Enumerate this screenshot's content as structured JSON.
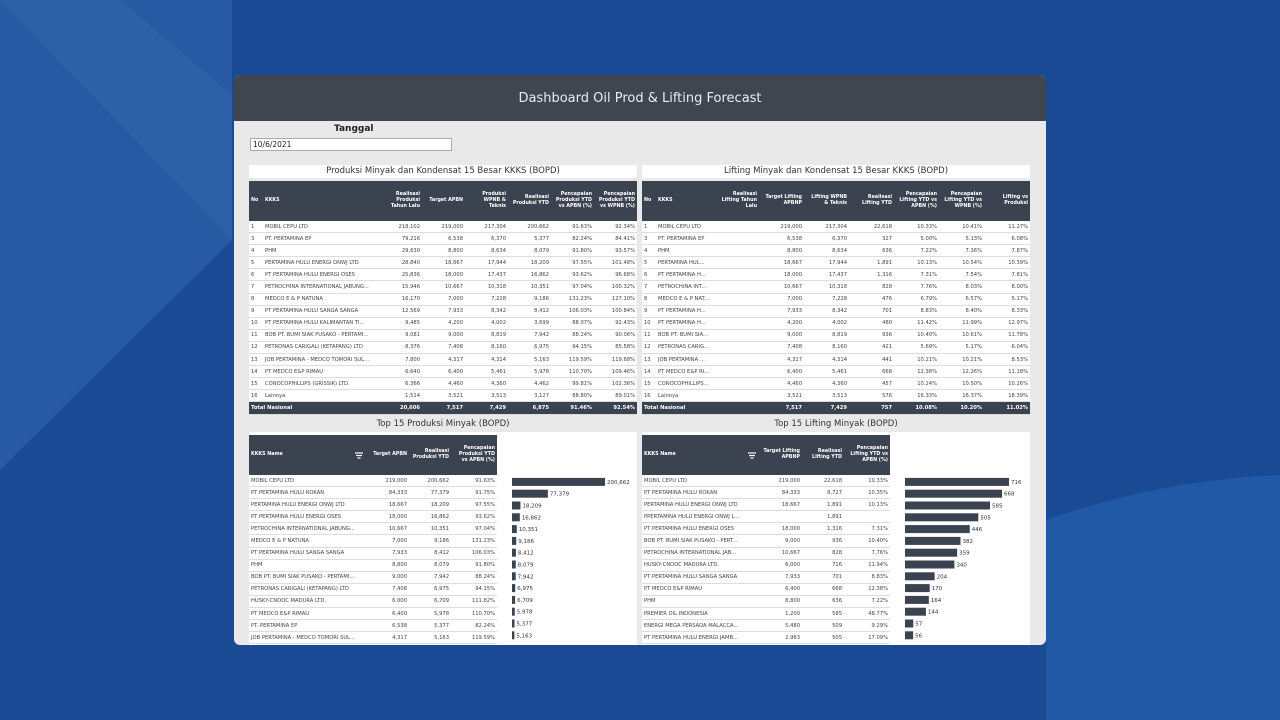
{
  "header": {
    "title": "Dashboard Oil Prod & Lifting Forecast"
  },
  "filter": {
    "label": "Tanggal",
    "value": "10/6/2021"
  },
  "tables": [
    {
      "title": "Produksi Minyak dan Kondensat 15 Besar KKKS (BOPD)",
      "columns": [
        "No",
        "KKKS",
        "Realisasi Produksi Tahun Lalu",
        "Target APBN",
        "Produksi WPNB & Teknis",
        "Realisasi Produksi YTD",
        "Pencapaian Produksi YTD vs APBN (%)",
        "Pencapaian Produksi YTD vs WPNB (%)"
      ],
      "rows": [
        [
          "1",
          "MOBIL CEPU LTD",
          "218,102",
          "219,000",
          "217,304",
          "200,662",
          "91.63%",
          "92.34%"
        ],
        [
          "3",
          "PT. PERTAMINA EP",
          "79,216",
          "6,538",
          "6,370",
          "5,377",
          "82.24%",
          "84.41%"
        ],
        [
          "4",
          "PHM",
          "29,630",
          "8,800",
          "8,634",
          "8,079",
          "91.80%",
          "93.57%"
        ],
        [
          "5",
          "PERTAMINA HULU ENERGI ONWJ LTD",
          "28,840",
          "18,667",
          "17,944",
          "18,209",
          "97.55%",
          "101.48%"
        ],
        [
          "6",
          "PT PERTAMINA HULU ENERGI OSES",
          "25,836",
          "18,000",
          "17,437",
          "16,862",
          "93.62%",
          "96.68%"
        ],
        [
          "7",
          "PETROCHINA INTERNATIONAL JABUNG...",
          "15,946",
          "10,667",
          "10,318",
          "10,351",
          "97.04%",
          "100.32%"
        ],
        [
          "8",
          "MEDCO E & P NATUNA",
          "16,170",
          "7,000",
          "7,228",
          "9,186",
          "131.23%",
          "127.10%"
        ],
        [
          "9",
          "PT PERTAMINA HULU SANGA SANGA",
          "12,569",
          "7,933",
          "8,342",
          "8,412",
          "106.03%",
          "100.84%"
        ],
        [
          "10",
          "PT PERTAMINA HULU KALIMANTAN TI...",
          "9,485",
          "4,200",
          "4,002",
          "3,699",
          "88.07%",
          "92.43%"
        ],
        [
          "11",
          "BOB PT. BUMI SIAK PUSAKO - PERTAMI...",
          "9,081",
          "9,000",
          "8,819",
          "7,942",
          "88.24%",
          "90.06%"
        ],
        [
          "12",
          "PETRONAS CARIGALI (KETAPANG) LTD",
          "8,376",
          "7,408",
          "8,160",
          "6,975",
          "94.15%",
          "85.58%"
        ],
        [
          "13",
          "JOB PERTAMINA - MEDCO TOMORI SUL...",
          "7,800",
          "4,317",
          "4,314",
          "5,163",
          "119.59%",
          "119.68%"
        ],
        [
          "14",
          "PT MEDCO E&P RIMAU",
          "6,640",
          "6,400",
          "5,461",
          "5,978",
          "110.70%",
          "109.46%"
        ],
        [
          "15",
          "CONOCOPHILLIPS (GRISSIK) LTD.",
          "6,366",
          "4,460",
          "4,360",
          "4,462",
          "99.81%",
          "102.36%"
        ],
        [
          "16",
          "Lainnya",
          "1,514",
          "3,521",
          "3,513",
          "3,127",
          "88.80%",
          "89.01%"
        ]
      ],
      "total": [
        "Total Nasional",
        "20,606",
        "7,517",
        "7,429",
        "6,875",
        "91.46%",
        "92.54%"
      ]
    },
    {
      "title": "Lifting Minyak dan Kondensat 15 Besar KKKS (BOPD)",
      "columns": [
        "No",
        "KKKS",
        "Realisasi Lifting Tahun Lalu",
        "Target Lifting APBNP",
        "Lifting WPNB & Teknis",
        "Realisasi Lifting YTD",
        "Pencapaian Lifting YTD vs APBN (%)",
        "Pencapaian Lifting YTD vs WPNB (%)",
        "Lifting vs Produksi"
      ],
      "rows": [
        [
          "1",
          "MOBIL CEPU LTD",
          null,
          "219,000",
          "217,304",
          "22,618",
          "10.33%",
          "10.41%",
          "11.27%"
        ],
        [
          "3",
          "PT. PERTAMINA EP",
          null,
          "6,538",
          "6,370",
          "327",
          "5.00%",
          "5.13%",
          "6.08%"
        ],
        [
          "4",
          "PHM",
          null,
          "8,800",
          "8,634",
          "636",
          "7.22%",
          "7.36%",
          "7.87%"
        ],
        [
          "5",
          "PERTAMINA HUL...",
          null,
          "18,667",
          "17,944",
          "1,891",
          "10.13%",
          "10.54%",
          "10.39%"
        ],
        [
          "6",
          "PT PERTAMINA H...",
          null,
          "18,000",
          "17,437",
          "1,316",
          "7.31%",
          "7.54%",
          "7.81%"
        ],
        [
          "7",
          "PETROCHINA INT...",
          null,
          "10,667",
          "10,318",
          "828",
          "7.76%",
          "8.03%",
          "8.00%"
        ],
        [
          "8",
          "MEDCO E & P NAT...",
          null,
          "7,000",
          "7,228",
          "476",
          "6.79%",
          "6.57%",
          "5.17%"
        ],
        [
          "9",
          "PT PERTAMINA H...",
          null,
          "7,933",
          "8,342",
          "701",
          "8.83%",
          "8.40%",
          "8.33%"
        ],
        [
          "10",
          "PT PERTAMINA H...",
          null,
          "4,200",
          "4,002",
          "480",
          "11.42%",
          "11.99%",
          "12.97%"
        ],
        [
          "11",
          "BOB PT. BUMI SIA...",
          null,
          "9,000",
          "8,819",
          "936",
          "10.40%",
          "10.61%",
          "11.78%"
        ],
        [
          "12",
          "PETRONAS CARIG...",
          null,
          "7,408",
          "8,160",
          "421",
          "5.69%",
          "5.17%",
          "6.04%"
        ],
        [
          "13",
          "JOB PERTAMINA ...",
          null,
          "4,317",
          "4,314",
          "441",
          "10.21%",
          "10.21%",
          "8.53%"
        ],
        [
          "14",
          "PT MEDCO E&P RI...",
          null,
          "6,400",
          "5,461",
          "668",
          "12.38%",
          "12.26%",
          "11.18%"
        ],
        [
          "15",
          "CONOCOPHILLIPS...",
          null,
          "4,460",
          "4,360",
          "457",
          "10.24%",
          "10.50%",
          "10.26%"
        ],
        [
          "16",
          "Lainnya",
          null,
          "3,521",
          "3,513",
          "576",
          "16.33%",
          "16.37%",
          "18.39%"
        ]
      ],
      "total": [
        "Total Nasional",
        null,
        "7,517",
        "7,429",
        "757",
        "10.08%",
        "10.20%",
        "11.02%"
      ]
    }
  ],
  "top": [
    {
      "title": "Top 15 Produksi Minyak (BOPD)",
      "columns": [
        "KKKS Name",
        "Target APBN",
        "Realisasi Produksi YTD",
        "Pencapaian Produksi YTD vs APBN (%)"
      ],
      "rows": [
        [
          "MOBIL CEPU LTD",
          "219,000",
          "200,662",
          "91.63%"
        ],
        [
          "PT PERTAMINA HULU ROKAN",
          "84,333",
          "77,379",
          "91.75%"
        ],
        [
          "PERTAMINA HULU ENERGI ONWJ LTD",
          "18,667",
          "18,209",
          "97.55%"
        ],
        [
          "PT PERTAMINA HULU ENERGI OSES",
          "18,000",
          "16,862",
          "93.62%"
        ],
        [
          "PETROCHINA INTERNATIONAL JABUNG...",
          "10,667",
          "10,351",
          "97.04%"
        ],
        [
          "MEDCO E & P NATUNA",
          "7,000",
          "9,186",
          "131.23%"
        ],
        [
          "PT PERTAMINA HULU SANGA SANGA",
          "7,933",
          "8,412",
          "106.03%"
        ],
        [
          "PHM",
          "8,800",
          "8,079",
          "91.80%"
        ],
        [
          "BOB PT. BUMI SIAK PUSAKO - PERTAMI...",
          "9,000",
          "7,942",
          "88.24%"
        ],
        [
          "PETRONAS CARIGALI (KETAPANG) LTD",
          "7,408",
          "6,975",
          "94.15%"
        ],
        [
          "HUSKY-CNOOC MADURA LTD.",
          "6,000",
          "6,709",
          "111.82%"
        ],
        [
          "PT MEDCO E&P RIMAU",
          "6,400",
          "5,978",
          "110.70%"
        ],
        [
          "PT. PERTAMINA EP",
          "6,538",
          "5,377",
          "82.24%"
        ],
        [
          "JOB PERTAMINA - MEDCO TOMORI SUL...",
          "4,317",
          "5,163",
          "119.59%"
        ]
      ],
      "bars": {
        "values": [
          200662,
          77379,
          18209,
          16862,
          10351,
          9186,
          8412,
          8079,
          7942,
          6975,
          6709,
          5978,
          5377,
          5163
        ],
        "value_labels": [
          "200,662",
          "77,379",
          "18,209",
          "16,862",
          "10,351",
          "9,186",
          "8,412",
          "8,079",
          "7,942",
          "6,975",
          "6,709",
          "5,978",
          "5,377",
          "5,163"
        ]
      }
    },
    {
      "title": "Top 15 Lifting Minyak (BOPD)",
      "columns": [
        "KKKS Name",
        "Target Lifting APBNP",
        "Realisasi Lifting YTD",
        "Pencapaian Lifting YTD vs APBN (%)"
      ],
      "rows": [
        [
          "MOBIL CEPU LTD",
          "219,000",
          "22,618",
          "10.33%"
        ],
        [
          "PT PERTAMINA HULU ROKAN",
          "84,333",
          "8,727",
          "10.35%"
        ],
        [
          "PERTAMINA HULU ENERGI ONWJ LTD",
          "18,667",
          "1,891",
          "10.13%"
        ],
        [
          "PPERTAMINA HULU ENERGI ONWJ L...",
          null,
          "1,891",
          null
        ],
        [
          "PT PERTAMINA HULU ENERGI OSES",
          "18,000",
          "1,316",
          "7.31%"
        ],
        [
          "BOB PT. BUMI SIAK PUSAKO - PERT...",
          "9,000",
          "936",
          "10.40%"
        ],
        [
          "PETROCHINA INTERNATIONAL JAB...",
          "10,667",
          "828",
          "7.76%"
        ],
        [
          "HUSKY-CNOOC MADURA LTD.",
          "6,000",
          "716",
          "11.94%"
        ],
        [
          "PT PERTAMINA HULU SANGA SANGA",
          "7,933",
          "701",
          "8.83%"
        ],
        [
          "PT MEDCO E&P RIMAU",
          "6,400",
          "668",
          "12.38%"
        ],
        [
          "PHM",
          "8,800",
          "636",
          "7.22%"
        ],
        [
          "PREMIER OIL INDONESIA",
          "1,200",
          "585",
          "48.77%"
        ],
        [
          "ENERGI MEGA PERSADA MALACCA...",
          "5,480",
          "509",
          "9.29%"
        ],
        [
          "PT PERTAMINA HULU ENERGI JAMB...",
          "2,963",
          "505",
          "17.09%"
        ]
      ],
      "bars": {
        "values": [
          716,
          668,
          585,
          505,
          446,
          382,
          359,
          340,
          204,
          170,
          164,
          144,
          57,
          56
        ]
      }
    }
  ]
}
